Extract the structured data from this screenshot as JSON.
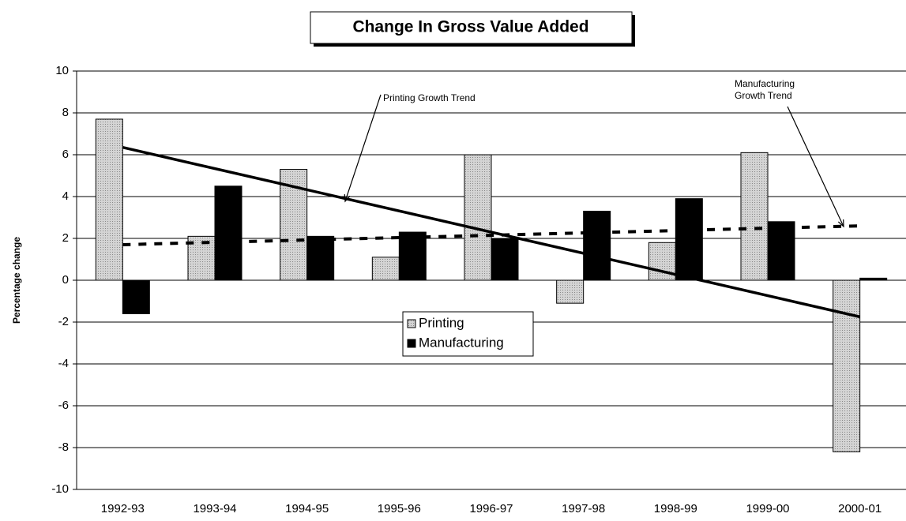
{
  "chart_data": {
    "type": "bar",
    "title": "Change In Gross Value Added",
    "y_label": "Percentage change",
    "categories": [
      "1992-93",
      "1993-94",
      "1994-95",
      "1995-96",
      "1996-97",
      "1997-98",
      "1998-99",
      "1999-00",
      "2000-01"
    ],
    "series": [
      {
        "name": "Printing",
        "color": "#d4d4d4",
        "values": [
          7.7,
          2.1,
          5.3,
          1.1,
          6.0,
          -1.1,
          1.8,
          6.1,
          -8.2
        ]
      },
      {
        "name": "Manufacturing",
        "color": "#000000",
        "values": [
          -1.6,
          4.5,
          2.1,
          2.3,
          2.0,
          3.3,
          3.9,
          2.8,
          0.1
        ]
      }
    ],
    "trend_lines": [
      {
        "label": [
          "Printing Growth Trend"
        ],
        "style": "solid",
        "values": [
          6.35,
          -1.75
        ]
      },
      {
        "label": [
          "Manufacturing",
          "Growth Trend"
        ],
        "style": "dashed",
        "values": [
          1.7,
          2.6
        ]
      }
    ],
    "ylim": [
      -10,
      10
    ],
    "yticks": [
      -10,
      -8,
      -6,
      -4,
      -2,
      0,
      2,
      4,
      6,
      8,
      10
    ],
    "grid": true,
    "legend": "center"
  }
}
